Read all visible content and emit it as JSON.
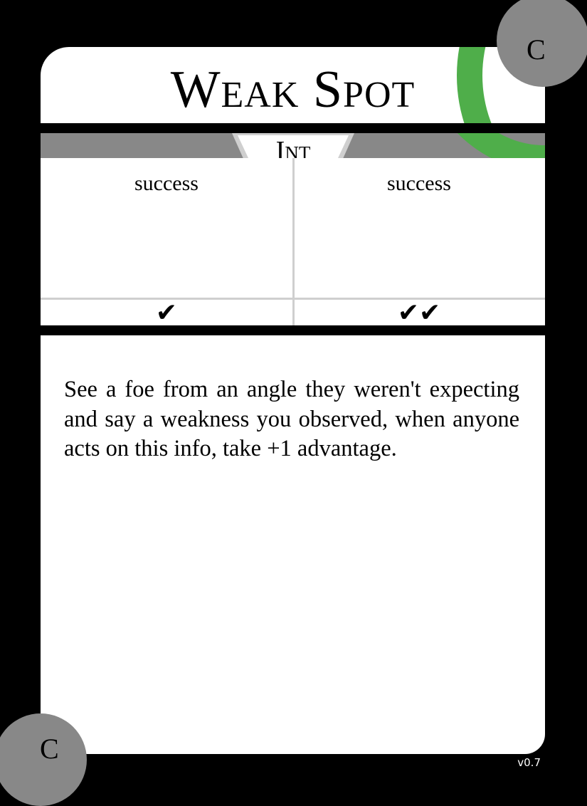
{
  "card": {
    "title": "Weak Spot",
    "stat": "Int",
    "results": [
      {
        "label": "success",
        "mark": "✔"
      },
      {
        "label": "success",
        "mark": "✔✔"
      }
    ],
    "body_text": "See a foe from an angle they weren't expecting and say a weakness you observed, when anyone acts on this info, take +1 advantage.",
    "corner_top_right": "C",
    "corner_bottom_left": "C",
    "version": "v0.7"
  },
  "colors": {
    "background": "#000000",
    "panel": "#ffffff",
    "band": "#888888",
    "accent_green": "#4fae4a",
    "divider": "#cfcfcf"
  }
}
